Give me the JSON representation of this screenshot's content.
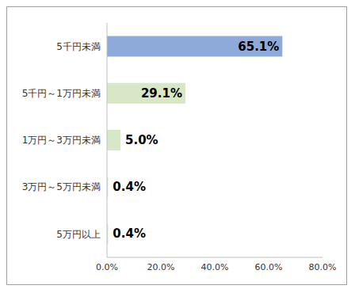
{
  "chart_data": {
    "type": "bar",
    "orientation": "horizontal",
    "categories": [
      "5千円未満",
      "5千円～1万円未満",
      "1万円～3万円未満",
      "3万円～5万円未満",
      "5万円以上"
    ],
    "values": [
      65.1,
      29.1,
      5.0,
      0.4,
      0.4
    ],
    "value_labels": [
      "65.1%",
      "29.1%",
      "5.0%",
      "0.4%",
      "0.4%"
    ],
    "data_labels": true,
    "colors": [
      "#8eaadb",
      "#d8e7c6",
      "#d8e7c6",
      "#d8e7c6",
      "#d8e7c6"
    ],
    "xlim": [
      0,
      80
    ],
    "xticks": [
      {
        "value": 0,
        "label": "0.0%"
      },
      {
        "value": 20,
        "label": "20.0%"
      },
      {
        "value": 40,
        "label": "40.0%"
      },
      {
        "value": 60,
        "label": "60.0%"
      },
      {
        "value": 80,
        "label": "80.0%"
      }
    ],
    "grid": false
  }
}
